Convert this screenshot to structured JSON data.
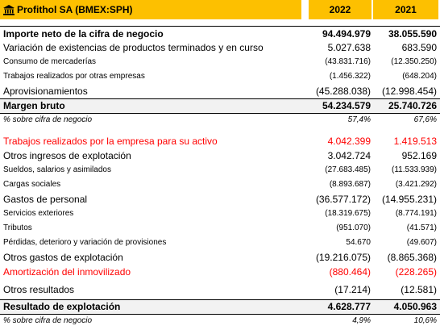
{
  "header": {
    "title": "Profithol SA (BMEX:SPH)",
    "col1": "2022",
    "col2": "2021",
    "icon": "bank-icon",
    "accent": "#fdc000"
  },
  "rows": [
    {
      "label": "Importe neto de la cifra de negocio",
      "v2022": "94.494.979",
      "v2021": "38.055.590"
    },
    {
      "label": "Variación de existencias de productos terminados y en curso",
      "v2022": "5.027.638",
      "v2021": "683.590"
    },
    {
      "label": "Consumo de mercaderías",
      "v2022": "(43.831.716)",
      "v2021": "(12.350.250)"
    },
    {
      "label": "Trabajos realizados por otras empresas",
      "v2022": "(1.456.322)",
      "v2021": "(648.204)"
    },
    {
      "label": "Aprovisionamientos",
      "v2022": "(45.288.038)",
      "v2021": "(12.998.454)"
    },
    {
      "label": "Margen bruto",
      "v2022": "54.234.579",
      "v2021": "25.740.726"
    },
    {
      "label": "% sobre cifra de negocio",
      "v2022": "57,4%",
      "v2021": "67,6%"
    },
    {
      "label": "Trabajos realizados por la empresa para su activo",
      "v2022": "4.042.399",
      "v2021": "1.419.513"
    },
    {
      "label": "Otros ingresos de explotación",
      "v2022": "3.042.724",
      "v2021": "952.169"
    },
    {
      "label": "Sueldos, salarios y asimilados",
      "v2022": "(27.683.485)",
      "v2021": "(11.533.939)"
    },
    {
      "label": "Cargas sociales",
      "v2022": "(8.893.687)",
      "v2021": "(3.421.292)"
    },
    {
      "label": "Gastos de personal",
      "v2022": "(36.577.172)",
      "v2021": "(14.955.231)"
    },
    {
      "label": "Servicios exteriores",
      "v2022": "(18.319.675)",
      "v2021": "(8.774.191)"
    },
    {
      "label": "Tributos",
      "v2022": "(951.070)",
      "v2021": "(41.571)"
    },
    {
      "label": "Pérdidas, deterioro y variación de provisiones",
      "v2022": "54.670",
      "v2021": "(49.607)"
    },
    {
      "label": "Otros gastos de explotación",
      "v2022": "(19.216.075)",
      "v2021": "(8.865.368)"
    },
    {
      "label": "Amortización del inmovilizado",
      "v2022": "(880.464)",
      "v2021": "(228.265)"
    },
    {
      "label": "Otros resultados",
      "v2022": "(17.214)",
      "v2021": "(12.581)"
    },
    {
      "label": "Resultado de explotación",
      "v2022": "4.628.777",
      "v2021": "4.050.963"
    },
    {
      "label": "% sobre cifra de negocio",
      "v2022": "4,9%",
      "v2021": "10,6%"
    }
  ],
  "colors": {
    "highlight_red": "#ff0000",
    "shaded": "#f2f2f2"
  }
}
